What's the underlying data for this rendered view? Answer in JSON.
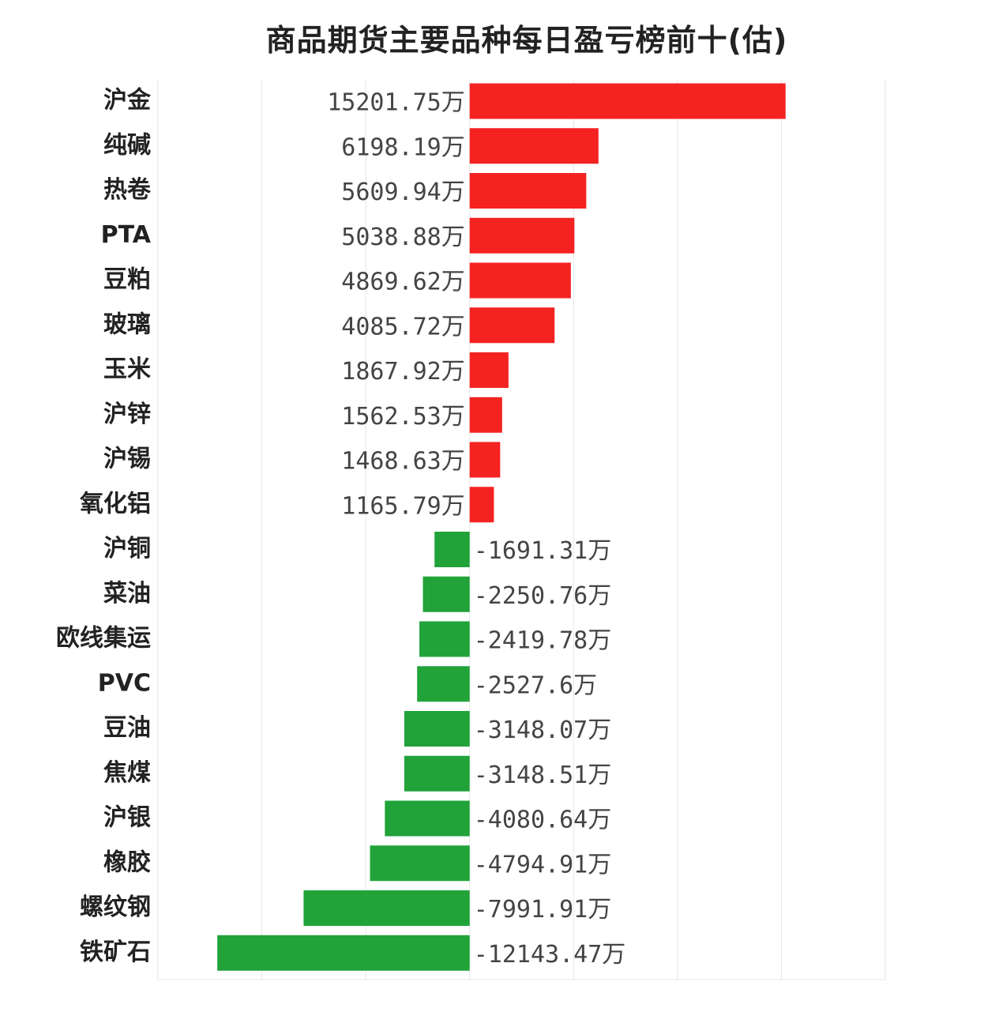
{
  "chart_data": {
    "type": "bar",
    "orientation": "horizontal",
    "title": "商品期货主要品种每日盈亏榜前十(估)",
    "unit_suffix": "万",
    "xlim": [
      -15000,
      20000
    ],
    "grid": true,
    "colors": {
      "positive": "#f52222",
      "negative": "#21a33a"
    },
    "categories": [
      "沪金",
      "纯碱",
      "热卷",
      "PTA",
      "豆粕",
      "玻璃",
      "玉米",
      "沪锌",
      "沪锡",
      "氧化铝",
      "沪铜",
      "菜油",
      "欧线集运",
      "PVC",
      "豆油",
      "焦煤",
      "沪银",
      "橡胶",
      "螺纹钢",
      "铁矿石"
    ],
    "values": [
      15201.75,
      6198.19,
      5609.94,
      5038.88,
      4869.62,
      4085.72,
      1867.92,
      1562.53,
      1468.63,
      1165.79,
      -1691.31,
      -2250.76,
      -2419.78,
      -2527.6,
      -3148.07,
      -3148.51,
      -4080.64,
      -4794.91,
      -7991.91,
      -12143.47
    ],
    "value_labels": [
      "15201.75万",
      "6198.19万",
      "5609.94万",
      "5038.88万",
      "4869.62万",
      "4085.72万",
      "1867.92万",
      "1562.53万",
      "1468.63万",
      "1165.79万",
      "-1691.31万",
      "-2250.76万",
      "-2419.78万",
      "-2527.6万",
      "-3148.07万",
      "-3148.51万",
      "-4080.64万",
      "-4794.91万",
      "-7991.91万",
      "-12143.47万"
    ]
  }
}
